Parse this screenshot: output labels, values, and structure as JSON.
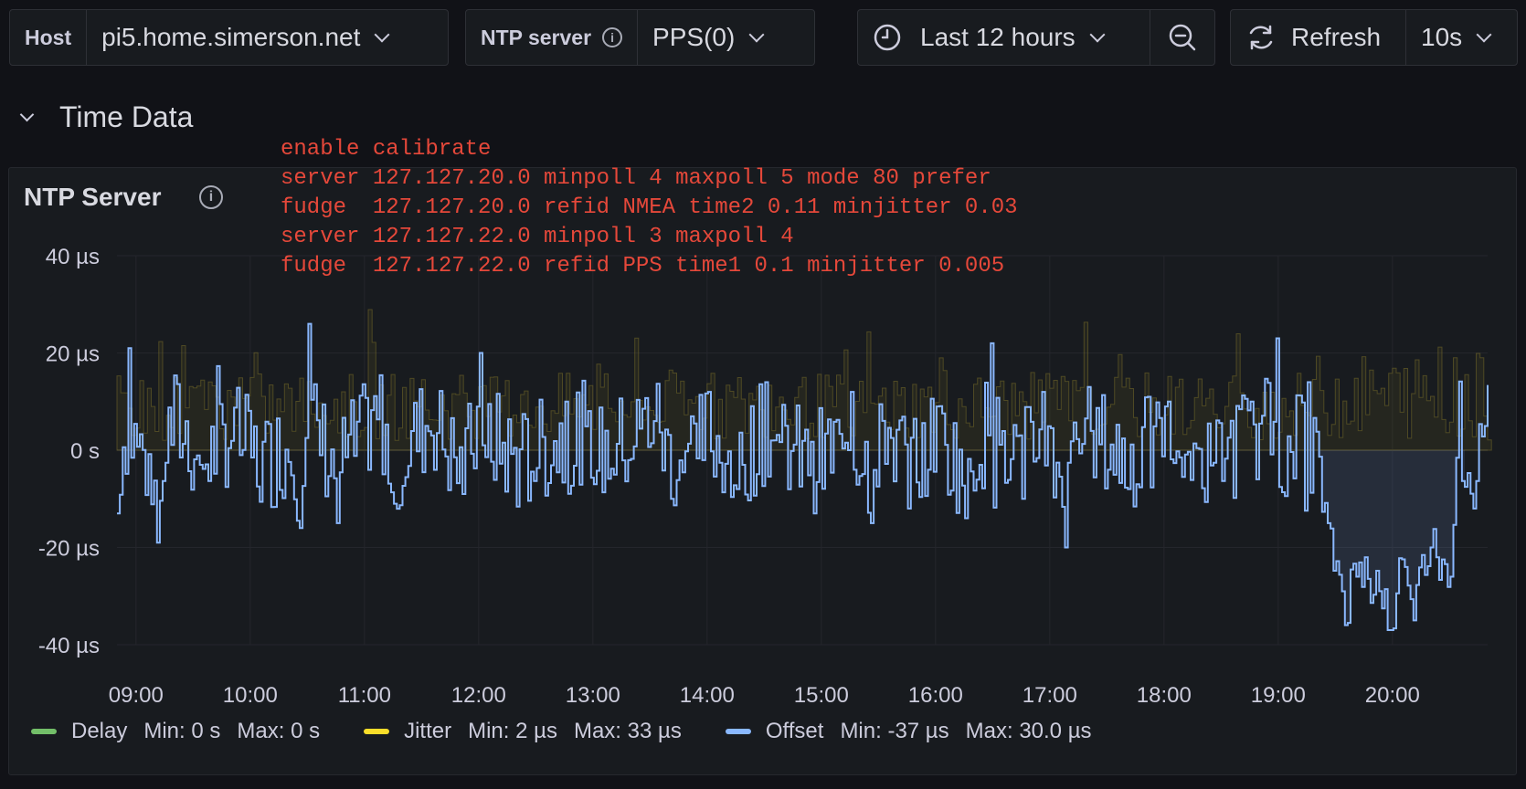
{
  "toolbar": {
    "host_label": "Host",
    "host_value": "pi5.home.simerson.net",
    "ntp_label": "NTP server",
    "ntp_value": "PPS(0)",
    "time_range": "Last 12 hours",
    "refresh_label": "Refresh",
    "refresh_interval": "10s"
  },
  "row": {
    "title": "Time Data"
  },
  "panel": {
    "title": "NTP Server",
    "notes": [
      "enable calibrate",
      "server 127.127.20.0 minpoll 4 maxpoll 5 mode 80 prefer",
      "fudge  127.127.20.0 refid NMEA time2 0.11 minjitter 0.03",
      "server 127.127.22.0 minpoll 3 maxpoll 4",
      "fudge  127.127.22.0 refid PPS time1 0.1 minjitter 0.005"
    ]
  },
  "colors": {
    "delay": "#73bf69",
    "jitter": "#fade2a",
    "offset": "#8ab8ff",
    "notes": "#e5483a"
  },
  "legend": [
    {
      "name": "Delay",
      "min": "Min: 0 s",
      "max": "Max: 0 s",
      "color": "#73bf69"
    },
    {
      "name": "Jitter",
      "min": "Min: 2 µs",
      "max": "Max: 33 µs",
      "color": "#fade2a"
    },
    {
      "name": "Offset",
      "min": "Min: -37 µs",
      "max": "Max: 30.0 µs",
      "color": "#8ab8ff"
    }
  ],
  "chart_data": {
    "type": "line",
    "y_ticks": [
      "40 µs",
      "20 µs",
      "0 s",
      "-20 µs",
      "-40 µs"
    ],
    "ylim": [
      -40,
      40
    ],
    "x_ticks": [
      "09:00",
      "10:00",
      "11:00",
      "12:00",
      "13:00",
      "14:00",
      "15:00",
      "16:00",
      "17:00",
      "18:00",
      "19:00",
      "20:00"
    ],
    "xlim": [
      "08:50",
      "20:50"
    ],
    "series": [
      {
        "name": "Offset",
        "unit": "µs",
        "style": "step",
        "keypoints": [
          [
            "08:50",
            -13
          ],
          [
            "08:55",
            21
          ],
          [
            "09:02",
            -2
          ],
          [
            "09:10",
            -19
          ],
          [
            "09:20",
            24
          ],
          [
            "09:35",
            -10
          ],
          [
            "09:50",
            17
          ],
          [
            "10:05",
            -12
          ],
          [
            "10:20",
            3
          ],
          [
            "10:25",
            -16
          ],
          [
            "10:30",
            26
          ],
          [
            "10:45",
            -15
          ],
          [
            "11:08",
            28
          ],
          [
            "11:15",
            -11
          ],
          [
            "11:35",
            27
          ],
          [
            "11:50",
            -18
          ],
          [
            "12:00",
            20
          ],
          [
            "12:20",
            -10
          ],
          [
            "12:45",
            10
          ],
          [
            "13:00",
            -7
          ],
          [
            "13:20",
            8
          ],
          [
            "13:32",
            30
          ],
          [
            "13:40",
            -10
          ],
          [
            "14:00",
            12
          ],
          [
            "14:15",
            -8
          ],
          [
            "14:30",
            14
          ],
          [
            "14:55",
            -13
          ],
          [
            "15:15",
            12
          ],
          [
            "15:25",
            -15
          ],
          [
            "15:32",
            24
          ],
          [
            "15:45",
            -12
          ],
          [
            "16:00",
            9
          ],
          [
            "16:15",
            -14
          ],
          [
            "16:28",
            22
          ],
          [
            "16:45",
            -10
          ],
          [
            "16:55",
            12
          ],
          [
            "17:07",
            -20
          ],
          [
            "17:20",
            14
          ],
          [
            "17:40",
            -8
          ],
          [
            "18:00",
            9
          ],
          [
            "18:20",
            -10
          ],
          [
            "18:45",
            10
          ],
          [
            "18:58",
            23
          ],
          [
            "19:05",
            -8
          ],
          [
            "19:15",
            14
          ],
          [
            "19:20",
            -2
          ],
          [
            "19:25",
            -15
          ],
          [
            "19:35",
            -31
          ],
          [
            "19:45",
            -22
          ],
          [
            "19:52",
            -29
          ],
          [
            "19:58",
            -37
          ],
          [
            "20:05",
            -24
          ],
          [
            "20:10",
            -35
          ],
          [
            "20:20",
            -20
          ],
          [
            "20:30",
            -26
          ],
          [
            "20:35",
            15
          ],
          [
            "20:42",
            -12
          ],
          [
            "20:50",
            11
          ]
        ]
      },
      {
        "name": "Jitter",
        "unit": "µs",
        "style": "step",
        "fill": true,
        "range": [
          2,
          33
        ]
      },
      {
        "name": "Delay",
        "unit": "s",
        "value": 0
      }
    ]
  }
}
